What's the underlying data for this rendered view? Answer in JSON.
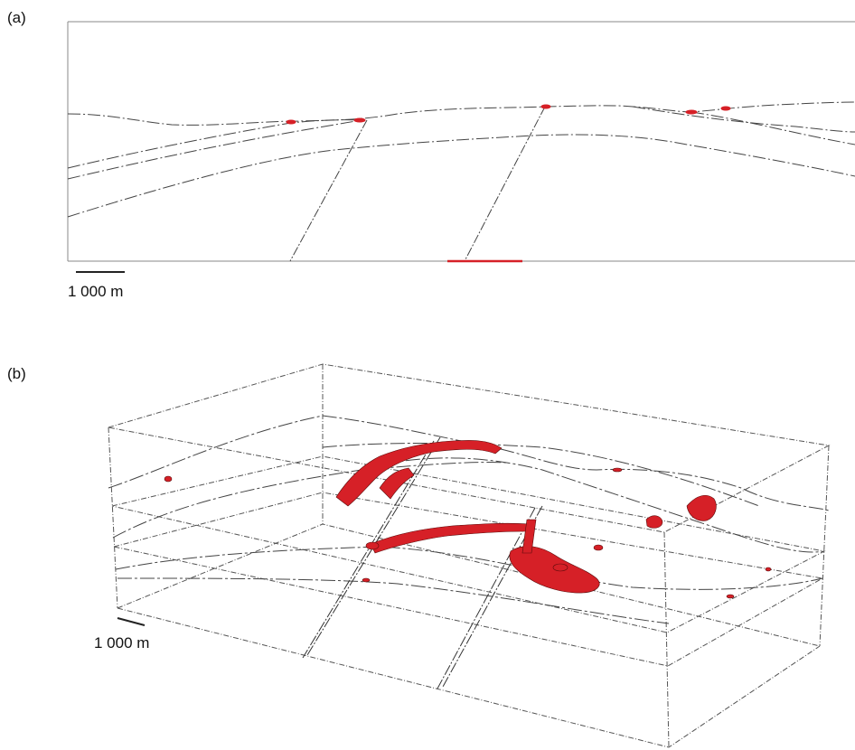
{
  "panel_a": {
    "label": "(a)",
    "scale_label": "1 000 m"
  },
  "panel_b": {
    "label": "(b)",
    "scale_label": "1 000 m"
  },
  "colors": {
    "line": "#333333",
    "highlight": "#d62027",
    "background": "#ffffff"
  }
}
